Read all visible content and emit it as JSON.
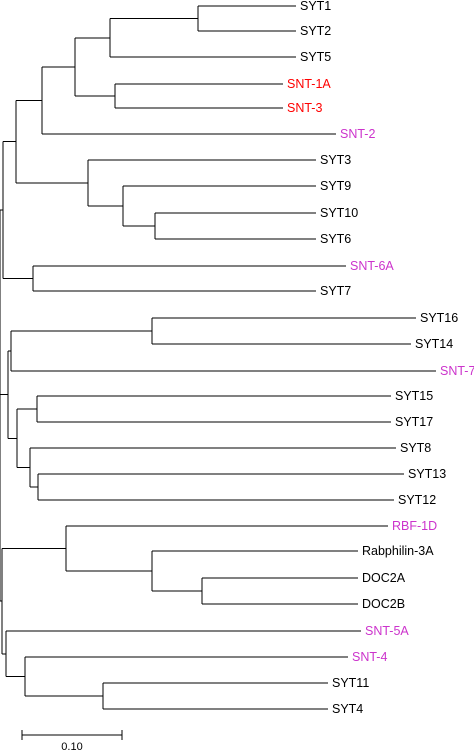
{
  "colors": {
    "line": "#000000",
    "default_label": "#000000",
    "red_label": "#ff0000",
    "magenta_label": "#cc33cc"
  },
  "leaves": [
    {
      "id": "syt1",
      "label": "SYT1",
      "color": "#000000"
    },
    {
      "id": "syt2",
      "label": "SYT2",
      "color": "#000000"
    },
    {
      "id": "syt5",
      "label": "SYT5",
      "color": "#000000"
    },
    {
      "id": "snt-1a",
      "label": "SNT-1A",
      "color": "#ff0000"
    },
    {
      "id": "snt-3",
      "label": "SNT-3",
      "color": "#ff0000"
    },
    {
      "id": "snt-2",
      "label": "SNT-2",
      "color": "#cc33cc"
    },
    {
      "id": "syt3",
      "label": "SYT3",
      "color": "#000000"
    },
    {
      "id": "syt9",
      "label": "SYT9",
      "color": "#000000"
    },
    {
      "id": "syt10",
      "label": "SYT10",
      "color": "#000000"
    },
    {
      "id": "syt6",
      "label": "SYT6",
      "color": "#000000"
    },
    {
      "id": "snt-6a",
      "label": "SNT-6A",
      "color": "#cc33cc"
    },
    {
      "id": "syt7",
      "label": "SYT7",
      "color": "#000000"
    },
    {
      "id": "syt16",
      "label": "SYT16",
      "color": "#000000"
    },
    {
      "id": "syt14",
      "label": "SYT14",
      "color": "#000000"
    },
    {
      "id": "snt-7",
      "label": "SNT-7",
      "color": "#cc33cc"
    },
    {
      "id": "syt15",
      "label": "SYT15",
      "color": "#000000"
    },
    {
      "id": "syt17",
      "label": "SYT17",
      "color": "#000000"
    },
    {
      "id": "syt8",
      "label": "SYT8",
      "color": "#000000"
    },
    {
      "id": "syt13",
      "label": "SYT13",
      "color": "#000000"
    },
    {
      "id": "syt12",
      "label": "SYT12",
      "color": "#000000"
    },
    {
      "id": "rbf-1d",
      "label": "RBF-1D",
      "color": "#cc33cc"
    },
    {
      "id": "rabphilin-3a",
      "label": "Rabphilin-3A",
      "color": "#000000"
    },
    {
      "id": "doc2a",
      "label": "DOC2A",
      "color": "#000000"
    },
    {
      "id": "doc2b",
      "label": "DOC2B",
      "color": "#000000"
    },
    {
      "id": "snt-5a",
      "label": "SNT-5A",
      "color": "#cc33cc"
    },
    {
      "id": "snt-4",
      "label": "SNT-4",
      "color": "#cc33cc"
    },
    {
      "id": "syt11",
      "label": "SYT11",
      "color": "#000000"
    },
    {
      "id": "syt4",
      "label": "SYT4",
      "color": "#000000"
    }
  ],
  "scale_bar": {
    "value": 0.1,
    "label": "0.10"
  }
}
